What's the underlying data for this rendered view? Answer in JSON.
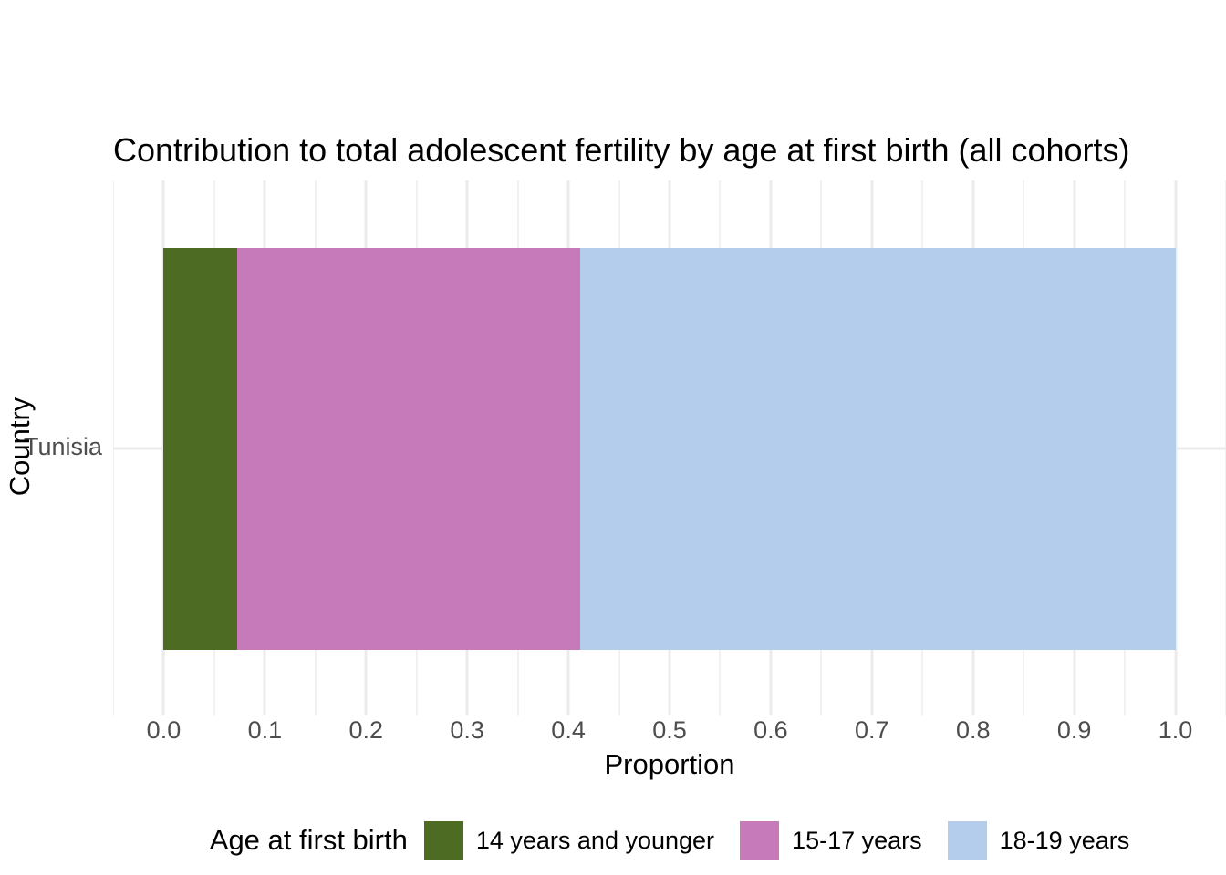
{
  "chart_data": {
    "type": "bar",
    "orientation": "horizontal",
    "stacked": true,
    "title": "Contribution to total adolescent fertility by age at first birth (all cohorts)",
    "xlabel": "Proportion",
    "ylabel": "Country",
    "categories": [
      "Tunisia"
    ],
    "series": [
      {
        "name": "14 years and younger",
        "values": [
          0.073
        ],
        "color": "#4D6B23"
      },
      {
        "name": "15-17 years",
        "values": [
          0.339
        ],
        "color": "#C77AB9"
      },
      {
        "name": "18-19 years",
        "values": [
          0.588
        ],
        "color": "#B4CDEC"
      }
    ],
    "xlim": [
      -0.05,
      1.05
    ],
    "x_ticks": [
      0.0,
      0.1,
      0.2,
      0.3,
      0.4,
      0.5,
      0.6,
      0.7,
      0.8,
      0.9,
      1.0
    ],
    "x_tick_labels": [
      "0.0",
      "0.1",
      "0.2",
      "0.3",
      "0.4",
      "0.5",
      "0.6",
      "0.7",
      "0.8",
      "0.9",
      "1.0"
    ],
    "x_minor_step": 0.05,
    "grid": true,
    "legend_title": "Age at first birth",
    "legend_position": "bottom"
  },
  "style": {
    "grid_major_color": "#EBEBEB",
    "grid_minor_color": "#F1F1F1",
    "tick_text_color": "#4D4D4D",
    "text_color": "#000000",
    "background": "#FFFFFF"
  }
}
